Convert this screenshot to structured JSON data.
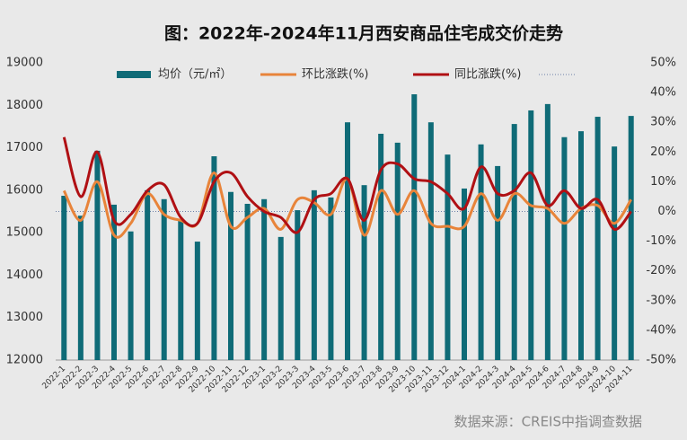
{
  "chart_data": {
    "type": "bar_line_combo",
    "title": "图：2022年-2024年11月西安商品住宅成交价走势",
    "source": "数据来源：CREIS中指调查数据",
    "legend": "top",
    "categories": [
      "2022-1",
      "2022-2",
      "2022-3",
      "2022-4",
      "2022-5",
      "2022-6",
      "2022-7",
      "2022-8",
      "2022-9",
      "2022-10",
      "2022-11",
      "2022-12",
      "2023-1",
      "2023-2",
      "2023-3",
      "2023-4",
      "2023-5",
      "2023-6",
      "2023-7",
      "2023-8",
      "2023-9",
      "2023-10",
      "2023-11",
      "2023-12",
      "2024-1",
      "2024-2",
      "2024-3",
      "2024-4",
      "2024-5",
      "2024-6",
      "2024-7",
      "2024-8",
      "2024-9",
      "2024-10",
      "2024-11"
    ],
    "series": [
      {
        "name": "均价（元/㎡）",
        "type": "bar",
        "color": "#0f6b77",
        "values": [
          15870,
          15400,
          16930,
          15660,
          15030,
          16000,
          15790,
          15300,
          14790,
          16800,
          15960,
          15680,
          15790,
          14900,
          15530,
          16000,
          15830,
          17600,
          16120,
          17330,
          17120,
          18260,
          17600,
          16840,
          16040,
          17080,
          16570,
          17560,
          17880,
          18030,
          17250,
          17390,
          17730,
          17030,
          17750
        ]
      },
      {
        "name": "环比涨跌(%)",
        "type": "line",
        "axis": "y2",
        "color": "#e8843a",
        "values": [
          7,
          -3,
          10,
          -8,
          -4,
          6,
          -1,
          -3,
          -4,
          13,
          -5,
          -2,
          1,
          -6,
          4,
          3,
          -1,
          11,
          -8,
          7,
          -1,
          7,
          -4,
          -5,
          -5,
          6,
          -3,
          6,
          2,
          1,
          -4,
          1,
          2,
          -4,
          4
        ]
      },
      {
        "name": "同比涨跌(%)",
        "type": "line",
        "axis": "y2",
        "color": "#b01014",
        "values": [
          25,
          5,
          20,
          -3,
          -1,
          7,
          9,
          -2,
          -4,
          10,
          13,
          5,
          0,
          -2,
          -7,
          4,
          6,
          11,
          -3,
          14,
          16,
          11,
          10,
          6,
          1,
          15,
          6,
          7,
          13,
          2,
          7,
          1,
          4,
          -6,
          0
        ]
      }
    ],
    "ylim": [
      12000,
      19000
    ],
    "yticks": [
      12000,
      13000,
      14000,
      15000,
      16000,
      17000,
      18000,
      19000
    ],
    "y2lim": [
      -50,
      50
    ],
    "y2ticks": [
      {
        "value": -50,
        "label": "-50%"
      },
      {
        "value": -40,
        "label": "-40%"
      },
      {
        "value": -30,
        "label": "-30%"
      },
      {
        "value": -20,
        "label": "-20%"
      },
      {
        "value": -10,
        "label": "-10%"
      },
      {
        "value": 0,
        "label": "0%"
      },
      {
        "value": 10,
        "label": "10%"
      },
      {
        "value": 20,
        "label": "20%"
      },
      {
        "value": 30,
        "label": "30%"
      },
      {
        "value": 40,
        "label": "40%"
      },
      {
        "value": 50,
        "label": "50%"
      }
    ]
  }
}
